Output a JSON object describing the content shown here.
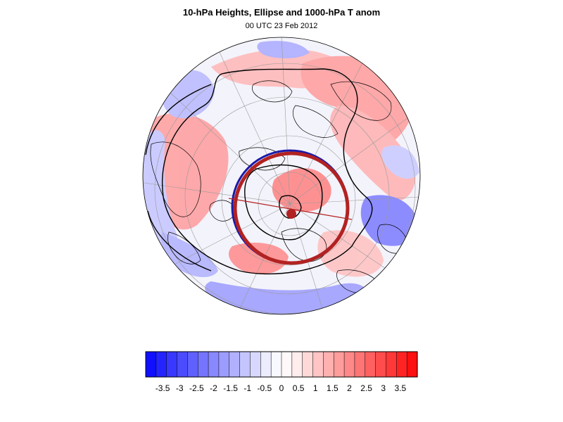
{
  "title": "10-hPa Heights, Ellipse and 1000-hPa T anom",
  "subtitle": "00 UTC 23 Feb 2012",
  "colors": {
    "background": "#ffffff",
    "ellipse": "#b22222",
    "ellipse_outline": "#1a1aa8",
    "contour": "#000000",
    "coast": "#000000",
    "grid": "#9a9a9a",
    "globe_fill": "#f3f3fb"
  },
  "colorbar": {
    "labels": [
      "-3.5",
      "-3",
      "-2.5",
      "-2",
      "-1.5",
      "-1",
      "-0.5",
      "0",
      "0.5",
      "1",
      "1.5",
      "2",
      "2.5",
      "3",
      "3.5"
    ],
    "bins": [
      "#1010ff",
      "#2424ff",
      "#3838ff",
      "#4c4cff",
      "#6060ff",
      "#7474ff",
      "#8888ff",
      "#9c9cff",
      "#b0b0ff",
      "#c4c4ff",
      "#d8d8ff",
      "#ececff",
      "#f8f8ff",
      "#fff8f8",
      "#ffecec",
      "#ffd8d8",
      "#ffc4c4",
      "#ffb0b0",
      "#ff9c9c",
      "#ff8888",
      "#ff7474",
      "#ff6060",
      "#ff4c4c",
      "#ff3838",
      "#ff2424",
      "#ff1010"
    ]
  },
  "map": {
    "projection": "orthographic-polar",
    "field": "1000-hPa temperature anomaly",
    "contours": "10-hPa geopotential height",
    "overlay": "vortex ellipse with centroid and axis"
  }
}
